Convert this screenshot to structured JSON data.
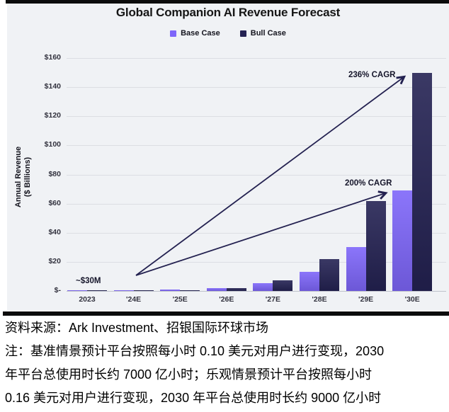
{
  "chart_data": {
    "type": "bar",
    "title": "Global Companion AI Revenue Forecast",
    "categories": [
      "2023",
      "'24E",
      "'25E",
      "'26E",
      "'27E",
      "'28E",
      "'29E",
      "'30E"
    ],
    "series": [
      {
        "name": "Base Case",
        "color": "#7e66fa",
        "values": [
          0.03,
          0.2,
          1.0,
          2.2,
          5.2,
          13,
          30,
          69
        ]
      },
      {
        "name": "Bull Case",
        "color": "#242253",
        "values": [
          0.03,
          0.2,
          0.7,
          1.8,
          7.4,
          22,
          62,
          150
        ]
      }
    ],
    "ylabel_line1": "Annual Revenue",
    "ylabel_line2": "($ Billions)",
    "ylim": [
      0,
      160
    ],
    "ytick_step": 20,
    "ytick_labels": [
      "$-",
      "$20",
      "$40",
      "$60",
      "$80",
      "$100",
      "$120",
      "$140",
      "$160"
    ],
    "grid": "horizontal",
    "legend_position": "top",
    "annotations": [
      {
        "text": "~$30M",
        "target": "2023 revenue"
      },
      {
        "text": "200% CAGR",
        "target": "base case growth to '29E/'30E"
      },
      {
        "text": "236% CAGR",
        "target": "bull case growth to '30E"
      }
    ],
    "accent_colors": {
      "base_case": "#7e66fa",
      "bull_case": "#242253",
      "arrow": "#232150",
      "panel_bg": "#f0f2f5"
    }
  },
  "notes": {
    "lines": [
      "资料来源：Ark Investment、招银国际环球市场",
      "注：基准情景预计平台按照每小时 0.10 美元对用户进行变现，2030",
      "年平台总使用时长约 7000 亿小时；乐观情景预计平台按照每小时",
      "0.16 美元对用户进行变现，2030 年平台总使用时长约 9000 亿小时"
    ]
  }
}
